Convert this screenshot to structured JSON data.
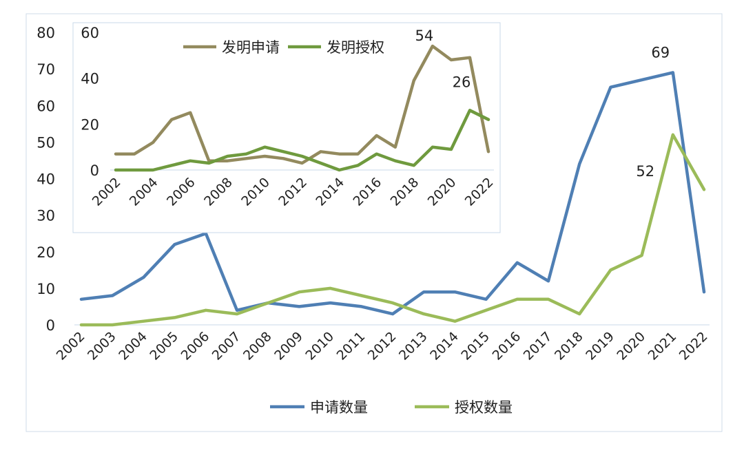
{
  "chart_data": [
    {
      "id": "main",
      "type": "line",
      "x": [
        "2002",
        "2003",
        "2004",
        "2005",
        "2006",
        "2007",
        "2008",
        "2009",
        "2010",
        "2011",
        "2012",
        "2013",
        "2014",
        "2015",
        "2016",
        "2017",
        "2018",
        "2019",
        "2020",
        "2021",
        "2022"
      ],
      "ylim": [
        0,
        80
      ],
      "yticks": [
        0,
        10,
        20,
        30,
        40,
        50,
        60,
        70,
        80
      ],
      "grid": false,
      "legend_position": "bottom",
      "series": [
        {
          "name": "申请数量",
          "color": "#4f7fb4",
          "values": [
            7,
            8,
            13,
            22,
            25,
            4,
            6,
            5,
            6,
            5,
            3,
            9,
            9,
            7,
            17,
            12,
            44,
            65,
            67,
            69,
            9
          ]
        },
        {
          "name": "授权数量",
          "color": "#9bbb59",
          "values": [
            0,
            0,
            1,
            2,
            4,
            3,
            6,
            9,
            10,
            8,
            6,
            3,
            1,
            4,
            7,
            7,
            3,
            15,
            19,
            52,
            37
          ]
        }
      ],
      "annotations": [
        {
          "series": 0,
          "x": "2021",
          "label": "69"
        },
        {
          "series": 1,
          "x": "2021",
          "label": "52"
        }
      ]
    },
    {
      "id": "inset",
      "type": "line",
      "x": [
        "2002",
        "2003",
        "2004",
        "2005",
        "2006",
        "2007",
        "2008",
        "2009",
        "2010",
        "2011",
        "2012",
        "2013",
        "2014",
        "2015",
        "2016",
        "2017",
        "2018",
        "2019",
        "2020",
        "2021",
        "2022"
      ],
      "xticks": [
        "2002",
        "2004",
        "2006",
        "2008",
        "2010",
        "2012",
        "2014",
        "2016",
        "2018",
        "2020",
        "2022"
      ],
      "ylim": [
        0,
        60
      ],
      "yticks": [
        0,
        20,
        40,
        60
      ],
      "grid": false,
      "legend_position": "top",
      "series": [
        {
          "name": "发明申请",
          "color": "#938a5e",
          "values": [
            7,
            7,
            12,
            22,
            25,
            4,
            4,
            5,
            6,
            5,
            3,
            8,
            7,
            7,
            15,
            10,
            39,
            54,
            48,
            49,
            8
          ]
        },
        {
          "name": "发明授权",
          "color": "#6f9a3e",
          "values": [
            0,
            0,
            0,
            2,
            4,
            3,
            6,
            7,
            10,
            8,
            6,
            3,
            0,
            2,
            7,
            4,
            2,
            10,
            9,
            26,
            22
          ]
        }
      ],
      "annotations": [
        {
          "series": 0,
          "x": "2019",
          "label": "54"
        },
        {
          "series": 1,
          "x": "2021",
          "label": "26"
        }
      ]
    }
  ]
}
